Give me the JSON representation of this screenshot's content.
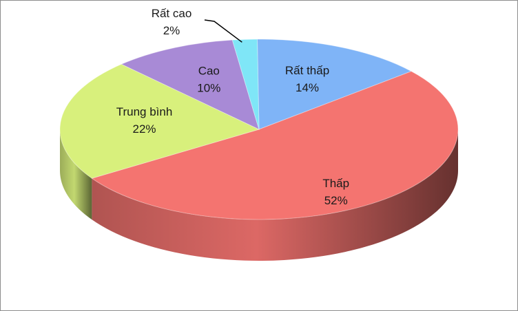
{
  "chart_data": {
    "type": "pie",
    "style": "3d",
    "title": "",
    "slices": [
      {
        "label": "Rất thấp",
        "value": 14,
        "value_text": "14%",
        "color": "#7fb4f7"
      },
      {
        "label": "Thấp",
        "value": 52,
        "value_text": "52%",
        "color": "#f47470"
      },
      {
        "label": "Trung bình",
        "value": 22,
        "value_text": "22%",
        "color": "#d8f07c"
      },
      {
        "label": "Cao",
        "value": 10,
        "value_text": "10%",
        "color": "#a88ad6"
      },
      {
        "label": "Rất cao",
        "value": 2,
        "value_text": "2%",
        "color": "#7fe6f7"
      }
    ],
    "legend": "none",
    "data_labels": "category and percentage"
  }
}
